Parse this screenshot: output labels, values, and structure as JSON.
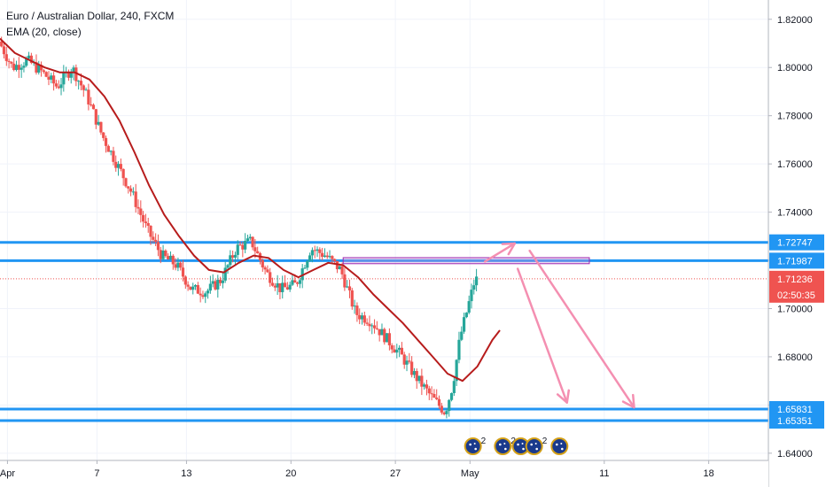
{
  "header": {
    "title": "Euro / Australian Dollar, 240, FXCM",
    "indicator": "EMA (20, close)"
  },
  "colors": {
    "up": "#26a69a",
    "down": "#ef5350",
    "ema": "#b71c1c",
    "level": "#2196f3",
    "arrow": "#f48fb1",
    "price_badge": "#ef5350",
    "zone": "#9c27b0"
  },
  "chart_data": {
    "type": "candlestick",
    "x_axis": {
      "ticks": [
        "Apr",
        "7",
        "13",
        "20",
        "27",
        "May",
        "11",
        "18"
      ],
      "tick_days": [
        1,
        7,
        13,
        20,
        27,
        32,
        41,
        48
      ],
      "range_days": [
        0.5,
        52
      ]
    },
    "y_axis": {
      "ticks": [
        "1.82000",
        "1.80000",
        "1.78000",
        "1.76000",
        "1.74000",
        "1.72000",
        "1.70000",
        "1.68000",
        "1.66000",
        "1.64000"
      ],
      "range": [
        1.637,
        1.828
      ]
    },
    "levels": [
      {
        "name": "resistance-upper",
        "value": 1.72747,
        "label": "1.72747"
      },
      {
        "name": "resistance-lower",
        "value": 1.71987,
        "label": "1.71987"
      },
      {
        "name": "support-upper",
        "value": 1.65831,
        "label": "1.65831"
      },
      {
        "name": "support-lower",
        "value": 1.65351,
        "label": "1.65351"
      }
    ],
    "current_price": {
      "value": 1.71236,
      "label": "1.71236",
      "countdown": "02:50:35"
    },
    "anchors": [
      [
        0.5,
        1.812
      ],
      [
        1.5,
        1.8
      ],
      [
        2.5,
        1.803
      ],
      [
        3.5,
        1.798
      ],
      [
        4.5,
        1.792
      ],
      [
        5.5,
        1.8
      ],
      [
        6.5,
        1.788
      ],
      [
        7.5,
        1.772
      ],
      [
        8.5,
        1.76
      ],
      [
        9.5,
        1.748
      ],
      [
        10.5,
        1.733
      ],
      [
        11.5,
        1.722
      ],
      [
        12.5,
        1.718
      ],
      [
        13.5,
        1.708
      ],
      [
        14.5,
        1.707
      ],
      [
        15.5,
        1.712
      ],
      [
        16.5,
        1.725
      ],
      [
        17.5,
        1.728
      ],
      [
        18.5,
        1.715
      ],
      [
        19.5,
        1.708
      ],
      [
        20.5,
        1.71
      ],
      [
        21.5,
        1.725
      ],
      [
        22.5,
        1.722
      ],
      [
        23.5,
        1.716
      ],
      [
        24.5,
        1.698
      ],
      [
        25.5,
        1.695
      ],
      [
        26.5,
        1.688
      ],
      [
        27.5,
        1.681
      ],
      [
        28.5,
        1.672
      ],
      [
        29.5,
        1.664
      ],
      [
        30.5,
        1.657
      ],
      [
        31.0,
        1.668
      ],
      [
        31.5,
        1.688
      ],
      [
        32.0,
        1.7
      ],
      [
        32.5,
        1.712
      ]
    ],
    "ema": [
      [
        0.5,
        1.812
      ],
      [
        1.5,
        1.806
      ],
      [
        2.5,
        1.803
      ],
      [
        3.5,
        1.8
      ],
      [
        4.5,
        1.798
      ],
      [
        5.5,
        1.798
      ],
      [
        6.5,
        1.795
      ],
      [
        7.5,
        1.788
      ],
      [
        8.5,
        1.778
      ],
      [
        9.5,
        1.765
      ],
      [
        10.5,
        1.751
      ],
      [
        11.5,
        1.739
      ],
      [
        12.5,
        1.73
      ],
      [
        13.5,
        1.722
      ],
      [
        14.5,
        1.716
      ],
      [
        15.5,
        1.715
      ],
      [
        16.5,
        1.719
      ],
      [
        17.5,
        1.722
      ],
      [
        18.5,
        1.721
      ],
      [
        19.5,
        1.716
      ],
      [
        20.5,
        1.713
      ],
      [
        21.5,
        1.716
      ],
      [
        22.5,
        1.719
      ],
      [
        23.5,
        1.718
      ],
      [
        24.5,
        1.713
      ],
      [
        25.5,
        1.706
      ],
      [
        26.5,
        1.7
      ],
      [
        27.5,
        1.694
      ],
      [
        28.5,
        1.687
      ],
      [
        29.5,
        1.68
      ],
      [
        30.5,
        1.673
      ],
      [
        31.5,
        1.67
      ],
      [
        32.5,
        1.676
      ],
      [
        33.5,
        1.687
      ],
      [
        34.0,
        1.691
      ]
    ],
    "zone": {
      "x0": 23.5,
      "x1": 40.0,
      "y0": 1.71862,
      "y1": 1.72112
    },
    "arrows": [
      {
        "name": "arrow-up-to-resistance",
        "from": [
          33.0,
          1.7195
        ],
        "to": [
          35.0,
          1.727
        ]
      },
      {
        "name": "arrow-down-short",
        "from": [
          35.2,
          1.7165
        ],
        "to": [
          38.5,
          1.661
        ]
      },
      {
        "name": "arrow-down-long",
        "from": [
          36.0,
          1.724
        ],
        "to": [
          43.0,
          1.659
        ]
      }
    ],
    "events": [
      {
        "name": "event-au-1",
        "day": 32.2,
        "count": "2"
      },
      {
        "name": "event-au-2",
        "day": 34.2,
        "count": "2"
      },
      {
        "name": "event-au-3",
        "day": 35.4,
        "count": ""
      },
      {
        "name": "event-au-4",
        "day": 36.3,
        "count": "2"
      },
      {
        "name": "event-au-5",
        "day": 38.0,
        "count": ""
      }
    ]
  }
}
